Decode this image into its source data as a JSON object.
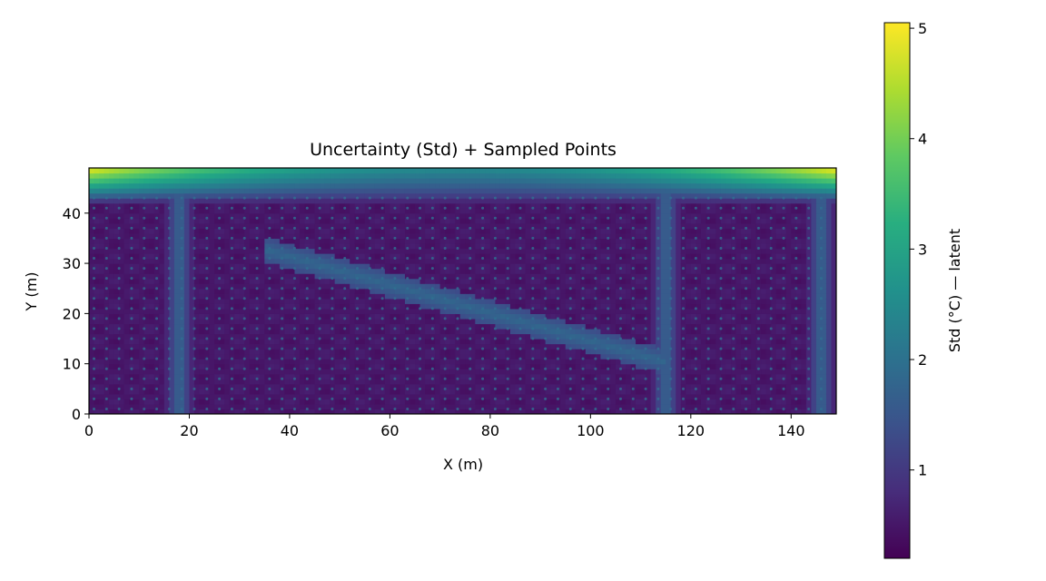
{
  "chart_data": {
    "type": "heatmap",
    "title": "Uncertainty (Std) + Sampled Points",
    "xlabel": "X (m)",
    "ylabel": "Y (m)",
    "xlim": [
      0,
      149
    ],
    "ylim": [
      0,
      49
    ],
    "x_ticks": [
      "0",
      "20",
      "40",
      "60",
      "80",
      "100",
      "120",
      "140"
    ],
    "y_ticks": [
      "0",
      "10",
      "20",
      "30",
      "40"
    ],
    "colorbar": {
      "label": "Std (°C) — latent",
      "min": 0.2,
      "max": 5.05,
      "ticks": [
        "1",
        "2",
        "3",
        "4",
        "5"
      ],
      "colormap": "viridis"
    },
    "field_summary": {
      "background_std": 0.5,
      "top_edge_std_range": [
        2.5,
        5.0
      ],
      "top_corners_std": 5.0,
      "vertical_band_x": [
        18,
        115,
        146
      ],
      "diagonal_band_std": 1.8
    },
    "sampled_points": {
      "x_range": [
        1,
        147
      ],
      "x_spacing": 2.5,
      "y_range": [
        1,
        43
      ],
      "y_spacing": 2,
      "marker_color": "#2f6f90"
    },
    "grid": false
  }
}
